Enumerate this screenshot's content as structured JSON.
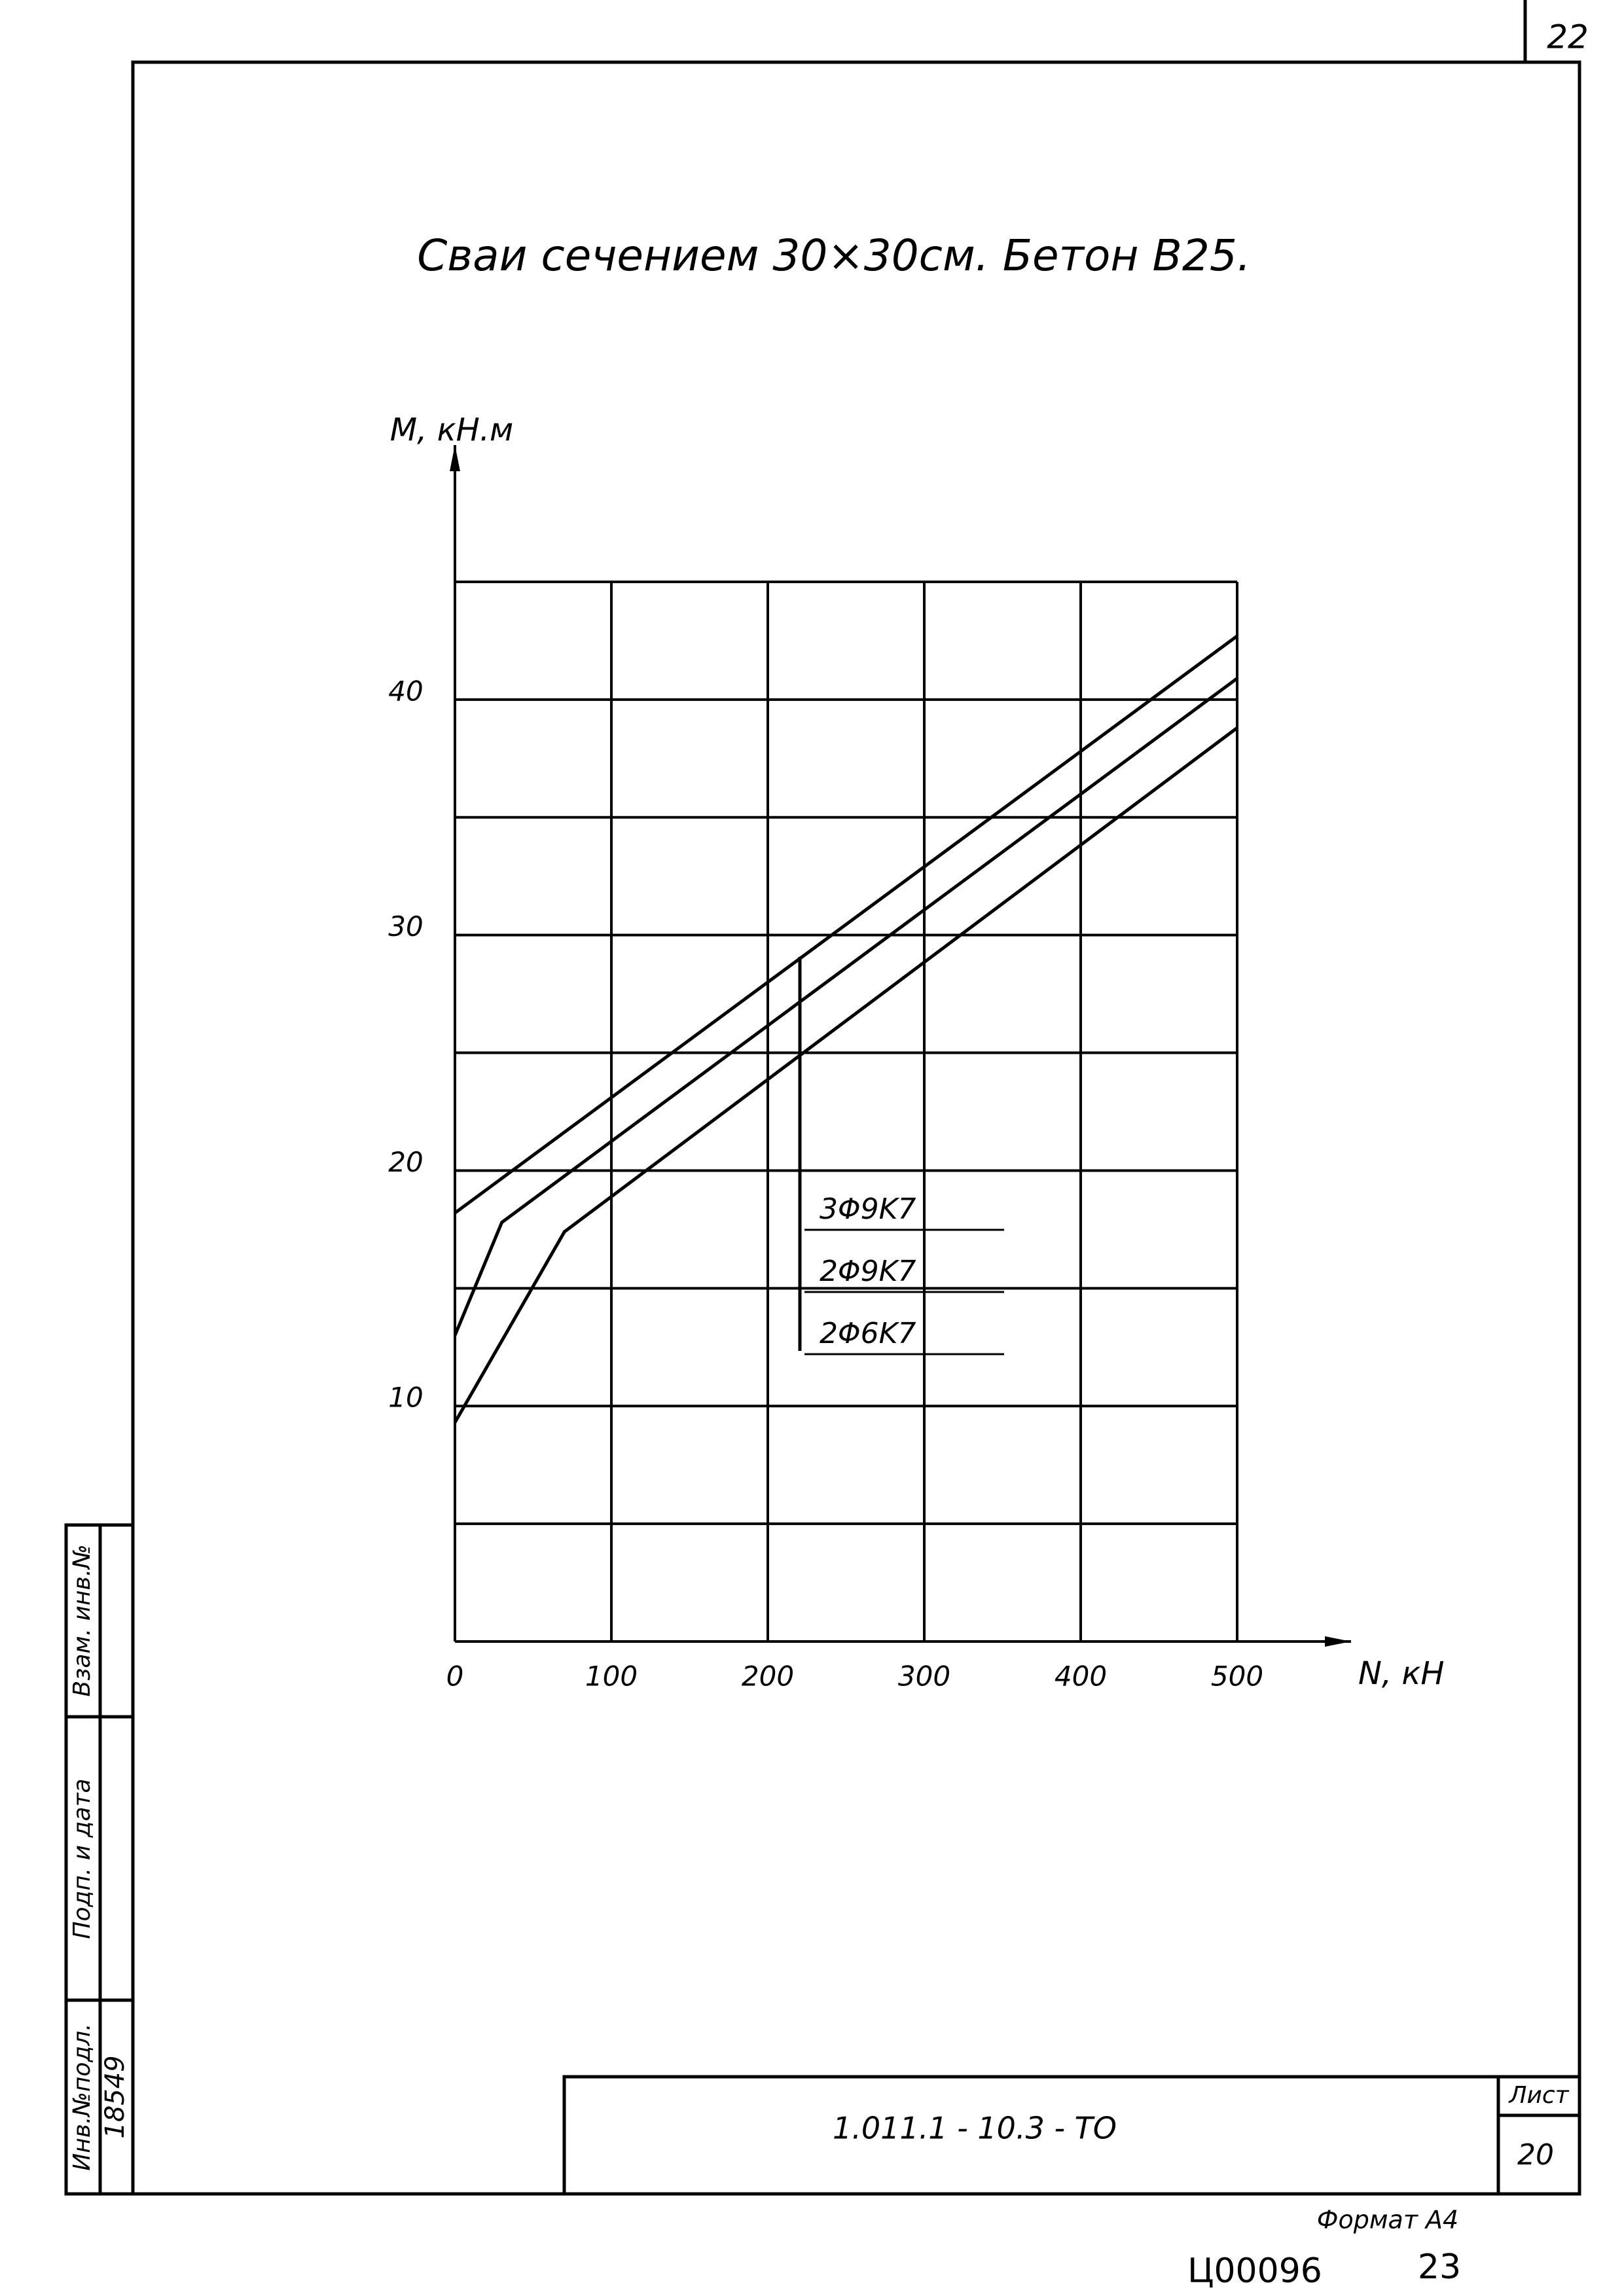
{
  "page_number": "22",
  "chart_data": {
    "type": "line",
    "title": "Сваи сечением 30×30см. Бетон B25.",
    "y_label": "M, кН.м",
    "x_label": "N, кН",
    "xlim": [
      0,
      500
    ],
    "xticks": [
      0,
      100,
      200,
      300,
      400,
      500
    ],
    "ylim": [
      0,
      45
    ],
    "yticks": [
      10,
      20,
      30,
      40
    ],
    "y_minor_grid": [
      5,
      15,
      25,
      35,
      45
    ],
    "grid": true,
    "color": "#000000",
    "series": [
      {
        "name": "3Φ9K7",
        "x": [
          0,
          500
        ],
        "values": [
          18.2,
          42.7
        ]
      },
      {
        "name": "2Φ9K7",
        "x": [
          0,
          30,
          500
        ],
        "values": [
          13.0,
          17.8,
          40.9
        ]
      },
      {
        "name": "2Φ6K7",
        "x": [
          0,
          70,
          500
        ],
        "values": [
          9.3,
          17.4,
          38.8
        ]
      }
    ]
  },
  "side_stamp": {
    "inv_podl_label": "Инв.№подл.",
    "podp_data_label": "Подп. и дата",
    "vzam_label": "Взам. инв.№",
    "inv_podl_value": "18549"
  },
  "title_block": {
    "code": "1.011.1 - 10.3 - ТО",
    "sheet_label": "Лист",
    "sheet": "20"
  },
  "format": "Формат А4",
  "archive_code": "Ц00096",
  "archive_page": "23"
}
